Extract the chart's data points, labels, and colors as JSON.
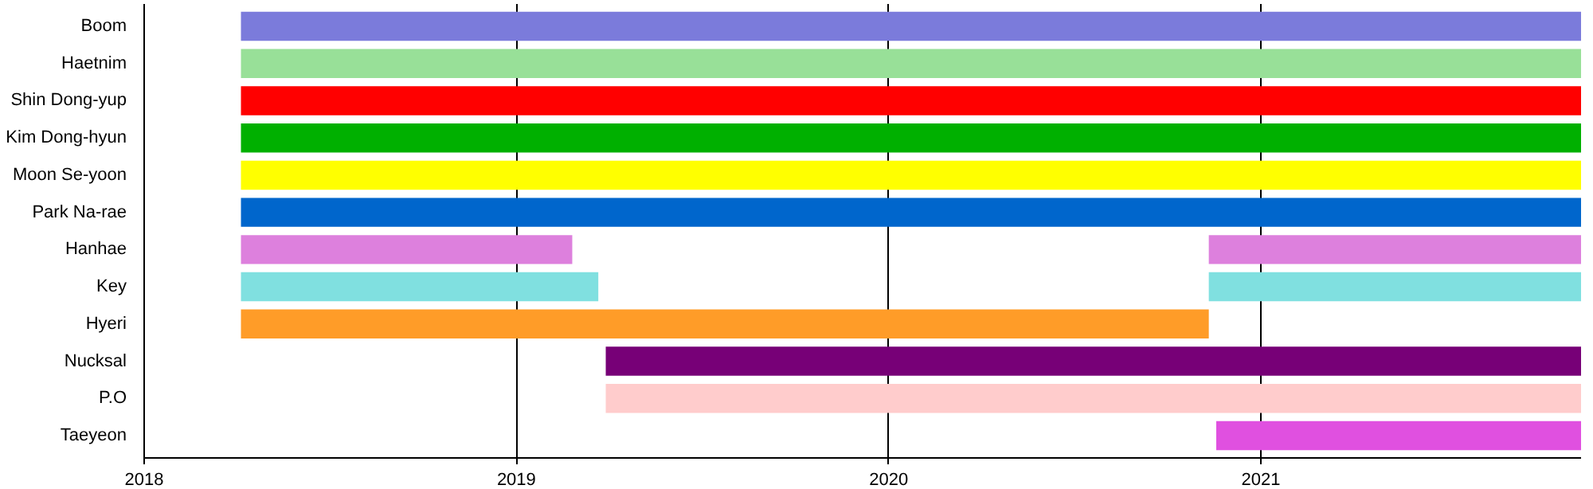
{
  "chart_data": {
    "type": "bar",
    "orientation": "horizontal",
    "categories": [
      "Boom",
      "Haetnim",
      "Shin Dong-yup",
      "Kim Dong-hyun",
      "Moon Se-yoon",
      "Park Na-rae",
      "Hanhae",
      "Key",
      "Hyeri",
      "Nucksal",
      "P.O",
      "Taeyeon"
    ],
    "series": [
      {
        "base": [
          2018.26,
          2018.26,
          2018.26,
          2018.26,
          2018.26,
          2018.26,
          2018.26,
          2018.26,
          2018.26,
          2019.24,
          2019.24,
          2020.88
        ],
        "values": [
          3.6,
          3.6,
          3.6,
          3.6,
          3.6,
          3.6,
          0.89,
          0.96,
          2.6,
          2.62,
          2.62,
          0.98
        ],
        "colors": [
          "#7b7bdb",
          "#98e098",
          "#ff0000",
          "#00b000",
          "#ffff00",
          "#0066cc",
          "#dd80dd",
          "#80e0e0",
          "#ff9c28",
          "#770077",
          "#ffcccc",
          "#e050e0"
        ]
      },
      {
        "base": [
          null,
          null,
          null,
          null,
          null,
          null,
          2020.86,
          2020.86,
          null,
          null,
          null,
          null
        ],
        "values": [
          null,
          null,
          null,
          null,
          null,
          null,
          1.0,
          1.0,
          null,
          null,
          null,
          null
        ],
        "colors": [
          "#7b7bdb",
          "#98e098",
          "#ff0000",
          "#00b000",
          "#ffff00",
          "#0066cc",
          "#dd80dd",
          "#80e0e0",
          "#ff9c28",
          "#770077",
          "#ffcccc",
          "#e050e0"
        ]
      }
    ],
    "xlim": [
      2018,
      2021.86
    ],
    "xticks": [
      2018,
      2019,
      2020,
      2021
    ],
    "grid": "x"
  }
}
